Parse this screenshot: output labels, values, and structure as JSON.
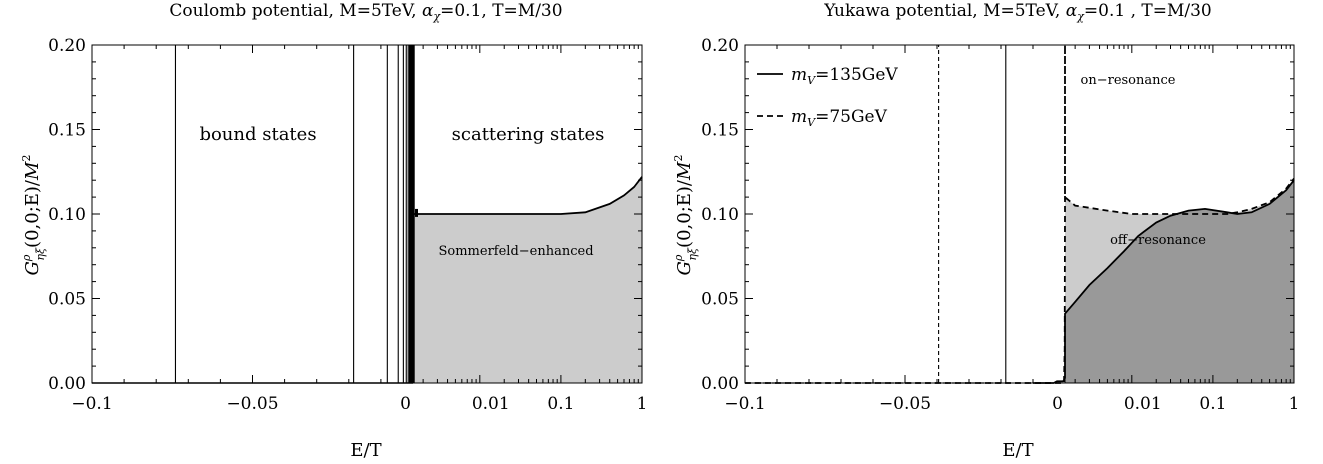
{
  "chart_data": [
    {
      "type": "line",
      "title": "Coulomb potential, M=5TeV, αχ=0.1, T=M/30",
      "xlabel": "E/T",
      "ylabel": "Gᵖηξ(0,0;E)/M²",
      "x_scale": "linear for E/T < 0, logarithmic for E/T > 0",
      "xlim": [
        -0.1,
        1
      ],
      "ylim": [
        0,
        0.2
      ],
      "x_ticks": [
        "−0.1",
        "−0.05",
        "0",
        "0.01",
        "0.1",
        "1"
      ],
      "y_ticks": [
        "0.00",
        "0.05",
        "0.10",
        "0.15",
        "0.20"
      ],
      "annotations": [
        "bound states",
        "scattering states",
        "Sommerfeld−enhanced"
      ],
      "bound_state_lines_x": [
        -0.074,
        -0.0185,
        -0.008,
        -0.0046,
        -0.003,
        -0.0021,
        -0.0015,
        -0.0011,
        -0.0008,
        -0.0006,
        -0.0004,
        -0.0003,
        -0.0002,
        -0.0001
      ],
      "series": [
        {
          "style": "solid",
          "x": [
            0.0001,
            0.001,
            0.003,
            0.01,
            0.03,
            0.1,
            0.2,
            0.4,
            0.6,
            0.8,
            1.0
          ],
          "y": [
            0.1,
            0.1,
            0.1,
            0.1,
            0.1,
            0.1,
            0.101,
            0.106,
            0.111,
            0.116,
            0.122
          ]
        }
      ],
      "fill_under_scattering": "#cccccc",
      "grid": false
    },
    {
      "type": "line",
      "title": "Yukawa potential, M=5TeV, αχ=0.1 , T=M/30",
      "xlabel": "E/T",
      "ylabel": "Gᵖηξ(0,0;E)/M²",
      "x_scale": "linear for E/T < 0, logarithmic for E/T > 0",
      "xlim": [
        -0.1,
        1
      ],
      "ylim": [
        0,
        0.2
      ],
      "x_ticks": [
        "−0.1",
        "−0.05",
        "0",
        "0.01",
        "0.1",
        "1"
      ],
      "y_ticks": [
        "0.00",
        "0.05",
        "0.10",
        "0.15",
        "0.20"
      ],
      "legend_position": "top-left",
      "annotations": [
        "on−resonance",
        "off−resonance"
      ],
      "series": [
        {
          "name": "mV=135GeV",
          "style": "solid",
          "bound_state_line_x": -0.0185,
          "x": [
            -0.01,
            -0.0035,
            -0.0025,
            -0.0018,
            -0.0012,
            -0.0006,
            -0.0002,
            0.0,
            0.0003,
            0.0006,
            0.0008,
            0.001,
            0.0015,
            0.002,
            0.003,
            0.005,
            0.008,
            0.012,
            0.02,
            0.03,
            0.05,
            0.08,
            0.15,
            0.2,
            0.3,
            0.5,
            0.8,
            1.0
          ],
          "y": [
            0.0,
            0.0,
            0.001,
            0.001,
            0.001,
            0.001,
            0.002,
            0.003,
            0.006,
            0.012,
            0.022,
            0.03,
            0.041,
            0.048,
            0.058,
            0.068,
            0.078,
            0.087,
            0.095,
            0.099,
            0.102,
            0.103,
            0.101,
            0.1,
            0.101,
            0.106,
            0.114,
            0.12
          ]
        },
        {
          "name": "mV=75GeV",
          "style": "dashed",
          "bound_state_line_x": -0.0395,
          "x": [
            -0.1,
            -0.001,
            -0.0003,
            -0.0001,
            0.0,
            0.0001,
            0.0002,
            0.0003,
            0.0004,
            0.0005,
            0.0007,
            0.001,
            0.002,
            0.005,
            0.01,
            0.02,
            0.05,
            0.1,
            0.15,
            0.2,
            0.3,
            0.5,
            0.8,
            1.0
          ],
          "y": [
            0.0,
            0.0,
            0.0,
            0.02,
            0.1,
            0.2,
            0.17,
            0.145,
            0.13,
            0.123,
            0.115,
            0.11,
            0.105,
            0.102,
            0.1,
            0.1,
            0.1,
            0.1,
            0.1,
            0.101,
            0.103,
            0.107,
            0.115,
            0.121
          ]
        }
      ],
      "fill_light": "#cccccc",
      "fill_dark": "#999999",
      "grid": false
    }
  ]
}
